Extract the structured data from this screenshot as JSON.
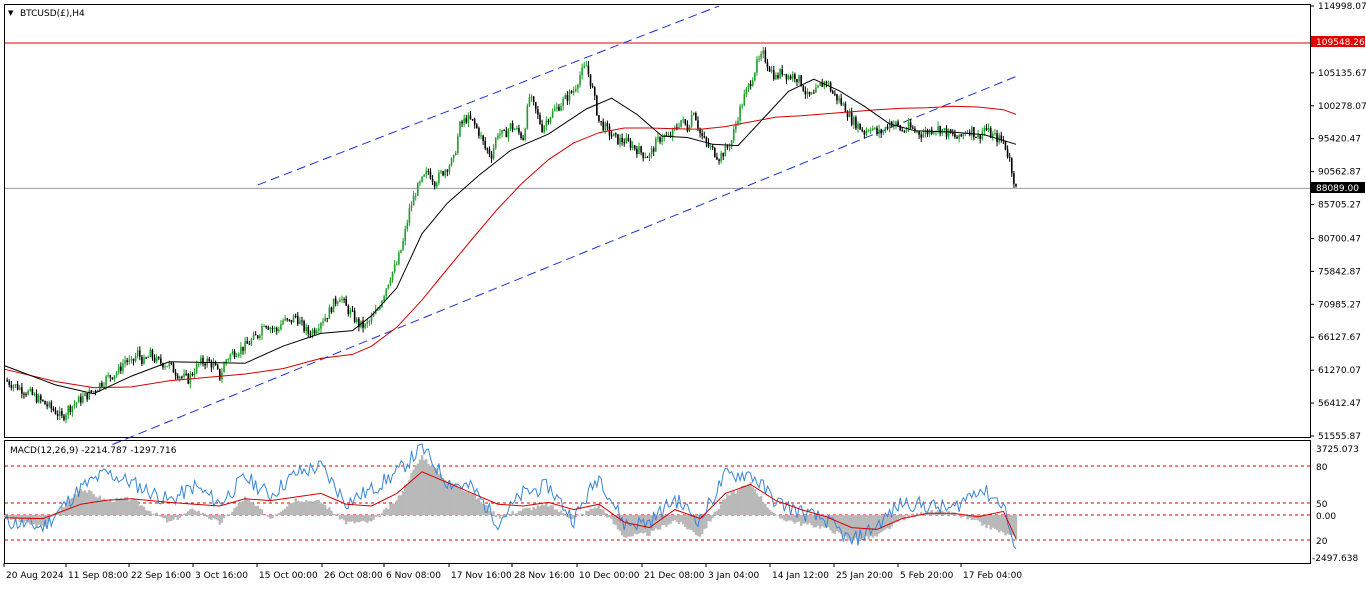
{
  "colors": {
    "background": "#ffffff",
    "frame": "#000000",
    "bull_candle": "#1f9e2a",
    "bear_candle": "#000000",
    "ma_fast": "#000000",
    "ma_slow": "#d40000",
    "channel": "#1b2fd1",
    "resistance": "#e00000",
    "macd_hist": "#b9b9b9",
    "macd_line": "#3a86d6",
    "macd_signal": "#d40000",
    "macd_levels": "#d40000"
  },
  "main_chart": {
    "symbol_label": "BTCUSD(£),H4",
    "resistance_label": "109548.26",
    "current_price_label": "88089.00",
    "y_tick_labels": [
      "114998.07",
      "105135.67",
      "100278.07",
      "95420.47",
      "90562.87",
      "85705.27",
      "80700.47",
      "75842.87",
      "70985.27",
      "66127.67",
      "61270.07",
      "56412.47",
      "51555.87"
    ]
  },
  "macd_panel": {
    "title": "MACD(12,26,9) -2214.787 -1297.716",
    "top_label": "3725.073",
    "level_labels": [
      "80",
      "50",
      "0.00",
      "20"
    ],
    "bottom_label": "-2497.638"
  },
  "time_labels": [
    "20 Aug 2024",
    "11 Sep 08:00",
    "22 Sep 16:00",
    "3 Oct 16:00",
    "15 Oct 00:00",
    "26 Oct 08:00",
    "6 Nov 08:00",
    "17 Nov 16:00",
    "28 Nov 16:00",
    "10 Dec 00:00",
    "21 Dec 08:00",
    "3 Jan 04:00",
    "14 Jan 12:00",
    "25 Jan 20:00",
    "5 Feb 20:00",
    "17 Feb 04:00"
  ],
  "chart_data": {
    "type": "line",
    "price_axis": {
      "ylim": [
        51555.87,
        114998.07
      ],
      "ticks": [
        114998.07,
        105135.67,
        100278.07,
        95420.47,
        90562.87,
        85705.27,
        80700.47,
        75842.87,
        70985.27,
        66127.67,
        61270.07,
        56412.47,
        51555.87
      ]
    },
    "close_price": [
      [
        0,
        59800
      ],
      [
        2,
        58800
      ],
      [
        4,
        57800
      ],
      [
        6,
        56500
      ],
      [
        8,
        55200
      ],
      [
        9,
        54200
      ],
      [
        10,
        55600
      ],
      [
        12,
        57000
      ],
      [
        14,
        58200
      ],
      [
        15,
        59200
      ],
      [
        16,
        60000
      ],
      [
        18,
        61200
      ],
      [
        19,
        62800
      ],
      [
        20,
        62200
      ],
      [
        21,
        63800
      ],
      [
        22,
        62400
      ],
      [
        23,
        63600
      ],
      [
        24,
        62600
      ],
      [
        26,
        62000
      ],
      [
        27,
        61000
      ],
      [
        28,
        60300
      ],
      [
        29,
        59900
      ],
      [
        30,
        61400
      ],
      [
        31,
        62400
      ],
      [
        32,
        62600
      ],
      [
        33,
        62000
      ],
      [
        34,
        60300
      ],
      [
        35,
        62900
      ],
      [
        36,
        63800
      ],
      [
        37,
        64300
      ],
      [
        38,
        64800
      ],
      [
        40,
        66400
      ],
      [
        41,
        68400
      ],
      [
        42,
        67600
      ],
      [
        43,
        67100
      ],
      [
        44,
        68600
      ],
      [
        45,
        68300
      ],
      [
        46,
        69300
      ],
      [
        47,
        67800
      ],
      [
        48,
        66700
      ],
      [
        49,
        67300
      ],
      [
        50,
        68600
      ],
      [
        51,
        69400
      ],
      [
        52,
        71100
      ],
      [
        53,
        72300
      ],
      [
        54,
        70500
      ],
      [
        55,
        69300
      ],
      [
        56,
        68000
      ],
      [
        57,
        67700
      ],
      [
        58,
        68800
      ],
      [
        59,
        70300
      ],
      [
        60,
        72700
      ],
      [
        61,
        75200
      ],
      [
        62,
        76900
      ],
      [
        63,
        80100
      ],
      [
        64,
        84800
      ],
      [
        65,
        87600
      ],
      [
        66,
        89200
      ],
      [
        67,
        90600
      ],
      [
        68,
        89100
      ],
      [
        69,
        90200
      ],
      [
        70,
        91300
      ],
      [
        71,
        92300
      ],
      [
        72,
        97300
      ],
      [
        73,
        98400
      ],
      [
        74,
        97900
      ],
      [
        75,
        96400
      ],
      [
        76,
        94000
      ],
      [
        77,
        93100
      ],
      [
        78,
        96400
      ],
      [
        79,
        95900
      ],
      [
        80,
        97300
      ],
      [
        81,
        96600
      ],
      [
        82,
        95600
      ],
      [
        83,
        101600
      ],
      [
        84,
        99500
      ],
      [
        85,
        97000
      ],
      [
        86,
        98600
      ],
      [
        87,
        99600
      ],
      [
        88,
        100600
      ],
      [
        89,
        101600
      ],
      [
        90,
        102600
      ],
      [
        91,
        104800
      ],
      [
        92,
        106200
      ],
      [
        93,
        102600
      ],
      [
        94,
        98000
      ],
      [
        95,
        97000
      ],
      [
        96,
        95900
      ],
      [
        97,
        95200
      ],
      [
        98,
        95100
      ],
      [
        99,
        94600
      ],
      [
        100,
        93900
      ],
      [
        101,
        93200
      ],
      [
        102,
        92900
      ],
      [
        103,
        94700
      ],
      [
        104,
        95900
      ],
      [
        105,
        95500
      ],
      [
        106,
        96700
      ],
      [
        107,
        98200
      ],
      [
        108,
        97000
      ],
      [
        109,
        99800
      ],
      [
        110,
        96200
      ],
      [
        111,
        94600
      ],
      [
        112,
        93700
      ],
      [
        113,
        92700
      ],
      [
        114,
        93700
      ],
      [
        115,
        95200
      ],
      [
        116,
        98800
      ],
      [
        117,
        101600
      ],
      [
        118,
        103900
      ],
      [
        119,
        106400
      ],
      [
        120,
        107800
      ],
      [
        121,
        105900
      ],
      [
        122,
        104400
      ],
      [
        123,
        105400
      ],
      [
        124,
        104600
      ],
      [
        125,
        104800
      ],
      [
        126,
        103700
      ],
      [
        127,
        101600
      ],
      [
        128,
        101800
      ],
      [
        129,
        103200
      ],
      [
        130,
        104000
      ],
      [
        131,
        102100
      ],
      [
        132,
        101100
      ],
      [
        133,
        99900
      ],
      [
        134,
        98200
      ],
      [
        135,
        97400
      ],
      [
        136,
        96400
      ],
      [
        137,
        97300
      ],
      [
        138,
        96200
      ],
      [
        139,
        96500
      ],
      [
        140,
        97900
      ],
      [
        141,
        97500
      ],
      [
        142,
        96500
      ],
      [
        143,
        97100
      ],
      [
        144,
        96600
      ],
      [
        145,
        96200
      ],
      [
        146,
        96400
      ],
      [
        147,
        97000
      ],
      [
        148,
        96900
      ],
      [
        149,
        96300
      ],
      [
        150,
        95900
      ],
      [
        151,
        95300
      ],
      [
        152,
        96600
      ],
      [
        153,
        96700
      ],
      [
        154,
        95600
      ],
      [
        155,
        97000
      ],
      [
        156,
        96000
      ],
      [
        157,
        95500
      ],
      [
        158,
        95100
      ],
      [
        159,
        92300
      ],
      [
        160,
        88000
      ]
    ],
    "ma_fast": [
      [
        0,
        61900
      ],
      [
        8,
        59100
      ],
      [
        14,
        57800
      ],
      [
        20,
        60400
      ],
      [
        26,
        62500
      ],
      [
        32,
        62400
      ],
      [
        38,
        62300
      ],
      [
        44,
        64800
      ],
      [
        50,
        66700
      ],
      [
        55,
        67100
      ],
      [
        58,
        69300
      ],
      [
        62,
        73400
      ],
      [
        66,
        81400
      ],
      [
        70,
        85900
      ],
      [
        75,
        90000
      ],
      [
        80,
        93700
      ],
      [
        86,
        96100
      ],
      [
        92,
        99800
      ],
      [
        96,
        101400
      ],
      [
        100,
        99000
      ],
      [
        104,
        95800
      ],
      [
        108,
        95600
      ],
      [
        112,
        94600
      ],
      [
        116,
        94400
      ],
      [
        120,
        98400
      ],
      [
        124,
        102400
      ],
      [
        128,
        104200
      ],
      [
        132,
        102500
      ],
      [
        136,
        100200
      ],
      [
        140,
        97600
      ],
      [
        144,
        96600
      ],
      [
        150,
        96400
      ],
      [
        155,
        96000
      ],
      [
        160,
        94600
      ]
    ],
    "ma_slow": [
      [
        0,
        61400
      ],
      [
        8,
        59600
      ],
      [
        14,
        58700
      ],
      [
        20,
        58800
      ],
      [
        26,
        59700
      ],
      [
        32,
        60200
      ],
      [
        38,
        60700
      ],
      [
        44,
        61500
      ],
      [
        50,
        63000
      ],
      [
        55,
        63600
      ],
      [
        58,
        64800
      ],
      [
        62,
        67600
      ],
      [
        66,
        71600
      ],
      [
        70,
        76200
      ],
      [
        74,
        80700
      ],
      [
        78,
        85100
      ],
      [
        82,
        89000
      ],
      [
        86,
        92300
      ],
      [
        90,
        94800
      ],
      [
        94,
        96300
      ],
      [
        98,
        97000
      ],
      [
        102,
        97000
      ],
      [
        106,
        96900
      ],
      [
        110,
        96800
      ],
      [
        114,
        97200
      ],
      [
        118,
        97900
      ],
      [
        122,
        98600
      ],
      [
        126,
        98800
      ],
      [
        130,
        99100
      ],
      [
        134,
        99400
      ],
      [
        138,
        99700
      ],
      [
        142,
        99900
      ],
      [
        146,
        100000
      ],
      [
        150,
        100200
      ],
      [
        154,
        100100
      ],
      [
        158,
        99700
      ],
      [
        160,
        99000
      ]
    ],
    "channel_upper": [
      [
        40,
        88600
      ],
      [
        113,
        115000
      ]
    ],
    "channel_upper_ext": [
      [
        113,
        115000
      ],
      [
        160,
        104600
      ]
    ],
    "channel_lower": [
      [
        17,
        50300
      ],
      [
        160,
        104600
      ]
    ],
    "resistance_level": 109548.26,
    "current_price": 88089.0,
    "macd": {
      "ylim": [
        -2497.638,
        3725.073
      ],
      "levels": [
        80,
        50,
        0,
        20
      ],
      "histogram": [
        [
          0,
          -150
        ],
        [
          6,
          -680
        ],
        [
          12,
          1500
        ],
        [
          16,
          820
        ],
        [
          20,
          900
        ],
        [
          26,
          -420
        ],
        [
          30,
          350
        ],
        [
          34,
          -480
        ],
        [
          38,
          960
        ],
        [
          42,
          -160
        ],
        [
          46,
          900
        ],
        [
          50,
          730
        ],
        [
          54,
          -420
        ],
        [
          58,
          -400
        ],
        [
          62,
          800
        ],
        [
          66,
          3300
        ],
        [
          70,
          1900
        ],
        [
          74,
          1200
        ],
        [
          78,
          -100
        ],
        [
          82,
          300
        ],
        [
          86,
          560
        ],
        [
          90,
          -220
        ],
        [
          94,
          560
        ],
        [
          98,
          -1200
        ],
        [
          102,
          -1050
        ],
        [
          106,
          -280
        ],
        [
          110,
          -1160
        ],
        [
          114,
          980
        ],
        [
          118,
          1750
        ],
        [
          122,
          -100
        ],
        [
          126,
          -480
        ],
        [
          130,
          -700
        ],
        [
          134,
          -1400
        ],
        [
          138,
          -1200
        ],
        [
          142,
          -200
        ],
        [
          146,
          180
        ],
        [
          150,
          100
        ],
        [
          154,
          -420
        ],
        [
          160,
          -1297.716
        ]
      ],
      "macd_line": [
        [
          0,
          -350
        ],
        [
          6,
          -680
        ],
        [
          12,
          1500
        ],
        [
          16,
          2350
        ],
        [
          20,
          1800
        ],
        [
          26,
          780
        ],
        [
          30,
          1600
        ],
        [
          34,
          650
        ],
        [
          38,
          2100
        ],
        [
          42,
          1100
        ],
        [
          46,
          2300
        ],
        [
          50,
          2700
        ],
        [
          54,
          700
        ],
        [
          58,
          1400
        ],
        [
          62,
          2350
        ],
        [
          66,
          3725.073
        ],
        [
          70,
          1850
        ],
        [
          74,
          1500
        ],
        [
          78,
          -400
        ],
        [
          82,
          1200
        ],
        [
          86,
          1600
        ],
        [
          90,
          -250
        ],
        [
          94,
          2200
        ],
        [
          98,
          -500
        ],
        [
          102,
          -400
        ],
        [
          106,
          900
        ],
        [
          110,
          -300
        ],
        [
          114,
          2200
        ],
        [
          118,
          2300
        ],
        [
          122,
          750
        ],
        [
          126,
          150
        ],
        [
          130,
          -300
        ],
        [
          134,
          -1500
        ],
        [
          138,
          -580
        ],
        [
          142,
          700
        ],
        [
          146,
          520
        ],
        [
          150,
          320
        ],
        [
          154,
          1500
        ],
        [
          158,
          650
        ],
        [
          160,
          -2214.787
        ]
      ],
      "signal_line": [
        [
          0,
          -150
        ],
        [
          6,
          -200
        ],
        [
          12,
          600
        ],
        [
          16,
          820
        ],
        [
          20,
          900
        ],
        [
          26,
          700
        ],
        [
          30,
          600
        ],
        [
          34,
          500
        ],
        [
          38,
          900
        ],
        [
          42,
          800
        ],
        [
          46,
          1000
        ],
        [
          50,
          1200
        ],
        [
          54,
          600
        ],
        [
          58,
          500
        ],
        [
          62,
          1200
        ],
        [
          66,
          2400
        ],
        [
          70,
          1800
        ],
        [
          74,
          1200
        ],
        [
          78,
          600
        ],
        [
          82,
          500
        ],
        [
          86,
          700
        ],
        [
          90,
          300
        ],
        [
          94,
          600
        ],
        [
          98,
          -400
        ],
        [
          102,
          -700
        ],
        [
          106,
          300
        ],
        [
          110,
          -200
        ],
        [
          114,
          1200
        ],
        [
          118,
          1700
        ],
        [
          122,
          800
        ],
        [
          126,
          300
        ],
        [
          130,
          -100
        ],
        [
          134,
          -700
        ],
        [
          138,
          -800
        ],
        [
          142,
          -200
        ],
        [
          146,
          100
        ],
        [
          150,
          100
        ],
        [
          154,
          -100
        ],
        [
          158,
          200
        ],
        [
          160,
          -1297.716
        ]
      ]
    }
  }
}
